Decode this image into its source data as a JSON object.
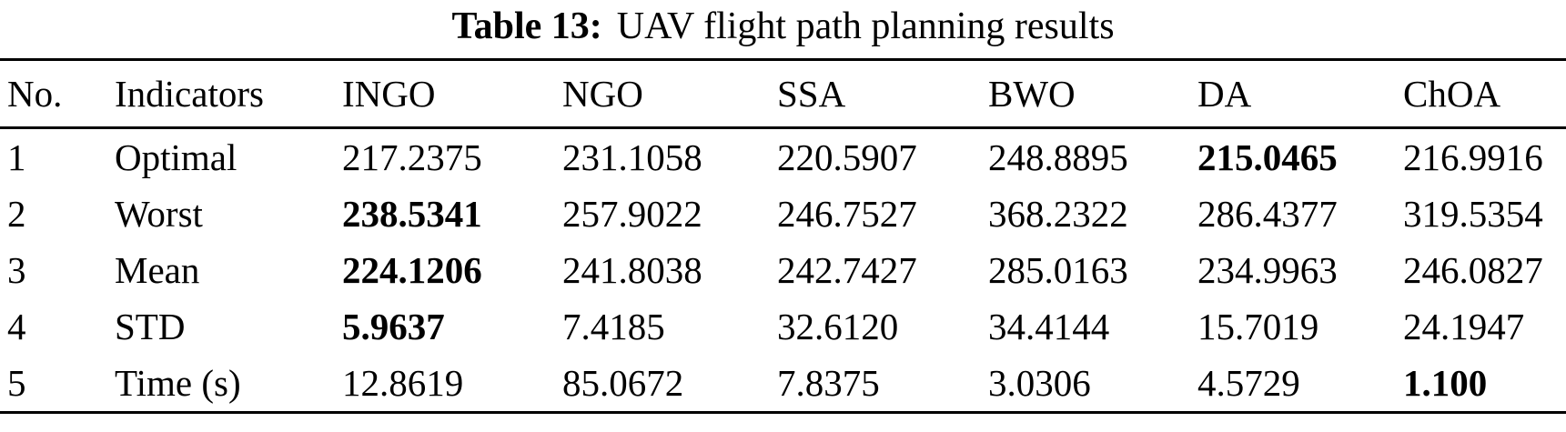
{
  "caption": {
    "label": "Table 13:",
    "text": "UAV flight path planning results"
  },
  "chart_data": {
    "type": "table",
    "title": "Table 13: UAV flight path planning results",
    "columns": [
      "No.",
      "Indicators",
      "INGO",
      "NGO",
      "SSA",
      "BWO",
      "DA",
      "ChOA"
    ],
    "rows": [
      {
        "no": "1",
        "indicator": "Optimal",
        "values": [
          "217.2375",
          "231.1058",
          "220.5907",
          "248.8895",
          "215.0465",
          "216.9916"
        ],
        "bold_value_index": 4
      },
      {
        "no": "2",
        "indicator": "Worst",
        "values": [
          "238.5341",
          "257.9022",
          "246.7527",
          "368.2322",
          "286.4377",
          "319.5354"
        ],
        "bold_value_index": 0
      },
      {
        "no": "3",
        "indicator": "Mean",
        "values": [
          "224.1206",
          "241.8038",
          "242.7427",
          "285.0163",
          "234.9963",
          "246.0827"
        ],
        "bold_value_index": 0
      },
      {
        "no": "4",
        "indicator": "STD",
        "values": [
          "5.9637",
          "7.4185",
          "32.6120",
          "34.4144",
          "15.7019",
          "24.1947"
        ],
        "bold_value_index": 0
      },
      {
        "no": "5",
        "indicator": "Time (s)",
        "values": [
          "12.8619",
          "85.0672",
          "7.8375",
          "3.0306",
          "4.5729",
          "1.100"
        ],
        "bold_value_index": 5
      }
    ]
  }
}
